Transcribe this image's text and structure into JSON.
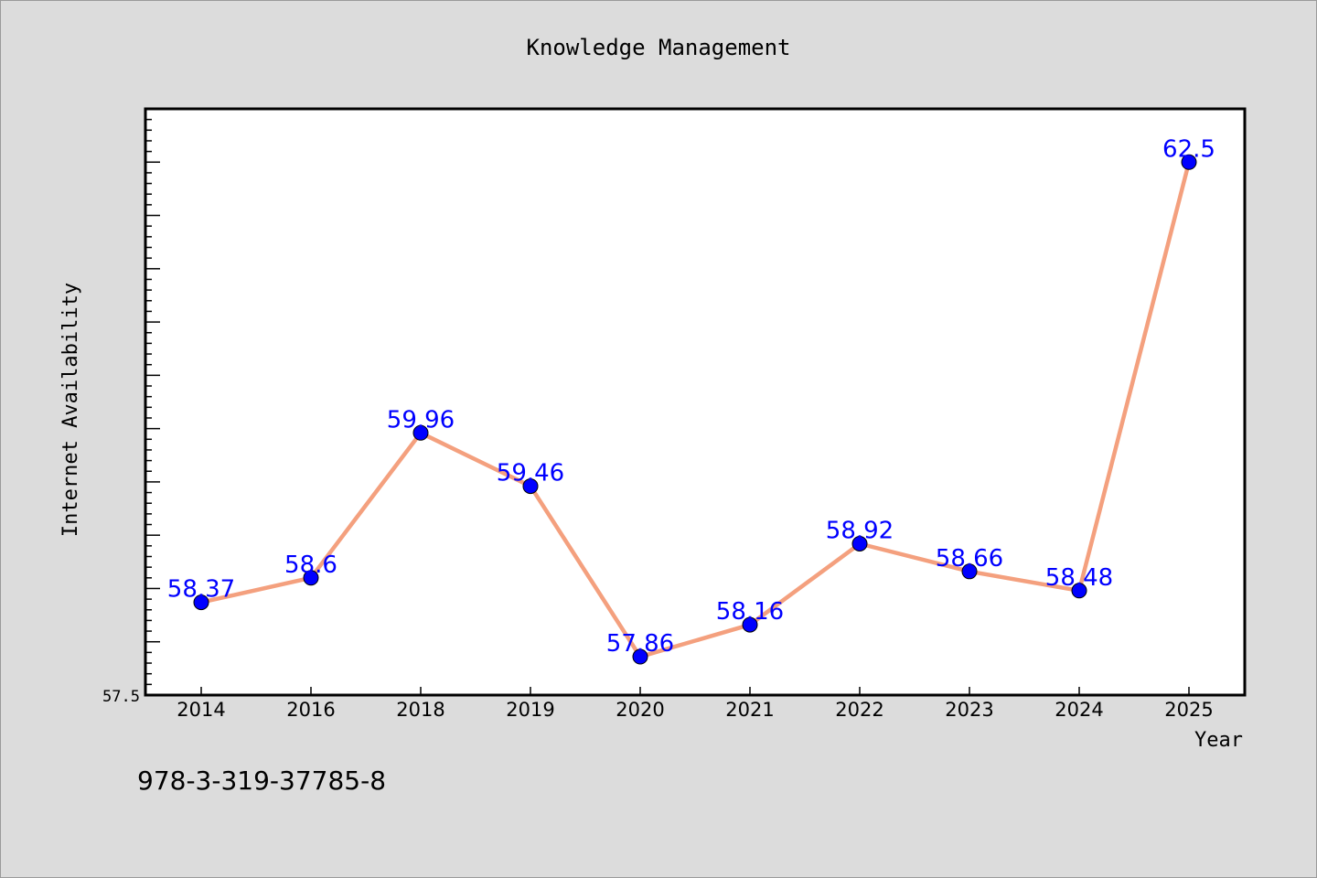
{
  "chart_data": {
    "type": "line",
    "title": "Knowledge Management",
    "xlabel": "Year",
    "ylabel": "Internet Availability",
    "categories": [
      "2014",
      "2016",
      "2018",
      "2019",
      "2020",
      "2021",
      "2022",
      "2023",
      "2024",
      "2025"
    ],
    "series": [
      {
        "values": [
          58.37,
          58.6,
          59.96,
          59.46,
          57.86,
          58.16,
          58.92,
          58.66,
          58.48,
          62.5
        ],
        "labels": [
          "58.37",
          "58.6",
          "59.96",
          "59.46",
          "57.86",
          "58.16",
          "58.92",
          "58.66",
          "58.48",
          "62.5"
        ]
      }
    ],
    "ylim": [
      57.5,
      63.0
    ],
    "y_tick_labels": [
      "57.5"
    ],
    "grid": false,
    "legend": "none",
    "colors": {
      "line": "#f4a07e",
      "marker": "#0000ff",
      "data_label": "#0000ff",
      "plot_background": "#ffffff",
      "figure_background": "#dcdcdc"
    }
  },
  "footer": {
    "isbn": "978-3-319-37785-8"
  }
}
